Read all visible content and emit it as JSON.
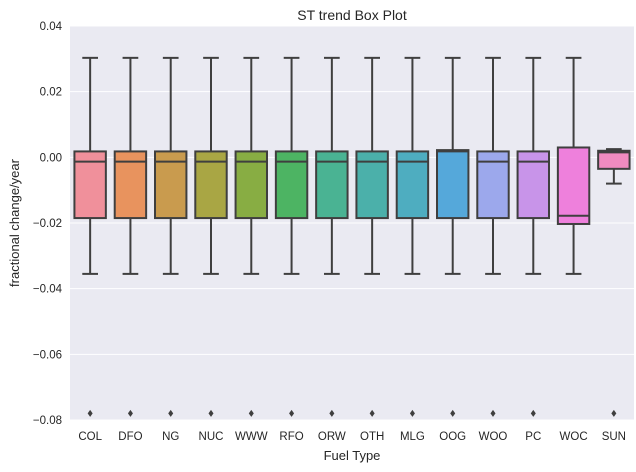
{
  "chart_data": {
    "type": "box",
    "title": "ST trend Box Plot",
    "xlabel": "Fuel Type",
    "ylabel": "fractional change/year",
    "ylim": [
      -0.08,
      0.04
    ],
    "yticks": [
      -0.08,
      -0.06,
      -0.04,
      -0.02,
      0.0,
      0.02,
      0.04
    ],
    "ytick_labels": [
      "−0.08",
      "−0.06",
      "−0.04",
      "−0.02",
      "0.00",
      "0.02",
      "0.04"
    ],
    "grid": true,
    "categories": [
      "COL",
      "DFO",
      "NG",
      "NUC",
      "WWW",
      "RFO",
      "ORW",
      "OTH",
      "MLG",
      "OOG",
      "WOO",
      "PC",
      "WOC",
      "SUN"
    ],
    "boxes": [
      {
        "category": "COL",
        "color": "#f0909b",
        "whislo": -0.0355,
        "q1": -0.0185,
        "median": -0.0013,
        "q3": 0.0018,
        "whishi": 0.0303,
        "fliers": [
          -0.078
        ]
      },
      {
        "category": "DFO",
        "color": "#e8935e",
        "whislo": -0.0355,
        "q1": -0.0185,
        "median": -0.0013,
        "q3": 0.0018,
        "whishi": 0.0303,
        "fliers": [
          -0.078
        ]
      },
      {
        "category": "NG",
        "color": "#c99b4e",
        "whislo": -0.0355,
        "q1": -0.0185,
        "median": -0.0013,
        "q3": 0.0018,
        "whishi": 0.0303,
        "fliers": [
          -0.078
        ]
      },
      {
        "category": "NUC",
        "color": "#a9a644",
        "whislo": -0.0355,
        "q1": -0.0185,
        "median": -0.0013,
        "q3": 0.0018,
        "whishi": 0.0303,
        "fliers": [
          -0.078
        ]
      },
      {
        "category": "WWW",
        "color": "#88ad43",
        "whislo": -0.0355,
        "q1": -0.0185,
        "median": -0.0013,
        "q3": 0.0018,
        "whishi": 0.0303,
        "fliers": [
          -0.078
        ]
      },
      {
        "category": "RFO",
        "color": "#4db463",
        "whislo": -0.0355,
        "q1": -0.0185,
        "median": -0.0013,
        "q3": 0.0018,
        "whishi": 0.0303,
        "fliers": [
          -0.078
        ]
      },
      {
        "category": "ORW",
        "color": "#4ab393",
        "whislo": -0.0355,
        "q1": -0.0185,
        "median": -0.0013,
        "q3": 0.0018,
        "whishi": 0.0303,
        "fliers": [
          -0.078
        ]
      },
      {
        "category": "OTH",
        "color": "#4bb0aa",
        "whislo": -0.0355,
        "q1": -0.0185,
        "median": -0.0013,
        "q3": 0.0018,
        "whishi": 0.0303,
        "fliers": [
          -0.078
        ]
      },
      {
        "category": "MLG",
        "color": "#4eadc0",
        "whislo": -0.0355,
        "q1": -0.0185,
        "median": -0.0013,
        "q3": 0.0018,
        "whishi": 0.0303,
        "fliers": [
          -0.078
        ]
      },
      {
        "category": "OOG",
        "color": "#55a8da",
        "whislo": -0.0355,
        "q1": -0.0185,
        "median": 0.0018,
        "q3": 0.0022,
        "whishi": 0.0303,
        "fliers": [
          -0.078
        ]
      },
      {
        "category": "WOO",
        "color": "#9ca8ec",
        "whislo": -0.0355,
        "q1": -0.0185,
        "median": -0.0013,
        "q3": 0.0018,
        "whishi": 0.0303,
        "fliers": [
          -0.078
        ]
      },
      {
        "category": "PC",
        "color": "#c894e9",
        "whislo": -0.0355,
        "q1": -0.0185,
        "median": -0.0013,
        "q3": 0.0018,
        "whishi": 0.0303,
        "fliers": [
          -0.078
        ]
      },
      {
        "category": "WOC",
        "color": "#ee80dc",
        "whislo": -0.0355,
        "q1": -0.0203,
        "median": -0.0178,
        "q3": 0.003,
        "whishi": 0.0303,
        "fliers": []
      },
      {
        "category": "SUN",
        "color": "#f08bc0",
        "whislo": -0.008,
        "q1": -0.0035,
        "median": 0.0015,
        "q3": 0.002,
        "whishi": 0.0025,
        "fliers": [
          -0.078
        ]
      }
    ],
    "style": {
      "plot_background": "#eaeaf2",
      "grid_color": "#ffffff",
      "line_color": "#3f3f3f"
    }
  }
}
